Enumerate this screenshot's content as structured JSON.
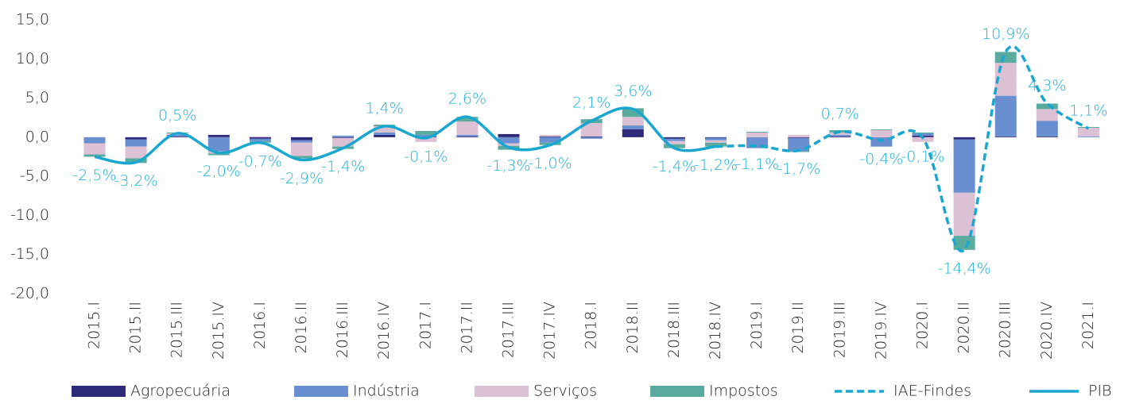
{
  "chart_data": {
    "type": "bar-line",
    "categories": [
      "2015.I",
      "2015.II",
      "2015.III",
      "2015.IV",
      "2016.I",
      "2016.II",
      "2016.III",
      "2016.IV",
      "2017.I",
      "2017.II",
      "2017.III",
      "2017.IV",
      "2018.I",
      "2018.II",
      "2018.III",
      "2018.IV",
      "2019.I",
      "2019.II",
      "2019.III",
      "2019.IV",
      "2020.I",
      "2020.II",
      "2020.III",
      "2020.IV",
      "2021.I"
    ],
    "series": [
      {
        "name": "Agropecuária",
        "kind": "bar",
        "color": "#2e2a7a",
        "values": [
          0,
          -0.3,
          0.1,
          0.3,
          -0.2,
          -0.4,
          -0.1,
          0.3,
          0.1,
          0.1,
          0.4,
          0.1,
          0.1,
          1.0,
          -0.2,
          -0.1,
          0,
          -0.1,
          0.1,
          0,
          0.2,
          -0.3,
          0.1,
          0.1,
          0
        ]
      },
      {
        "name": "Indústria",
        "kind": "bar",
        "color": "#6a8fd0",
        "values": [
          -0.8,
          -0.9,
          0.2,
          -1.8,
          -0.3,
          -0.3,
          0.2,
          0.3,
          0.2,
          0.2,
          -0.8,
          -0.7,
          -0.2,
          0.5,
          -0.3,
          -0.3,
          -1.4,
          -1.7,
          0.2,
          -1.2,
          0.3,
          -6.8,
          5.2,
          2.0,
          0.1
        ]
      },
      {
        "name": "Serviços",
        "kind": "bar",
        "color": "#dcc0d4",
        "values": [
          -1.4,
          -1.5,
          0.2,
          -0.3,
          0.1,
          -1.7,
          -1.1,
          0.8,
          -0.6,
          1.7,
          -0.3,
          0.2,
          1.7,
          1.1,
          -0.4,
          -0.3,
          0.6,
          0.3,
          0.3,
          0.9,
          -0.6,
          -5.5,
          4.2,
          1.5,
          1.1
        ]
      },
      {
        "name": "Impostos",
        "kind": "bar",
        "color": "#5aab9f",
        "values": [
          -0.3,
          -0.6,
          0.1,
          -0.2,
          -0.2,
          -0.3,
          -0.3,
          0.2,
          0.5,
          0.6,
          -0.5,
          -0.3,
          0.5,
          1.1,
          -0.5,
          -0.5,
          0.1,
          -0.1,
          0.3,
          0.1,
          0.1,
          -1.8,
          1.4,
          0.7,
          0.1
        ]
      },
      {
        "name": "IAE-Findes",
        "kind": "line",
        "dashed": true,
        "color": "#1aa7cf",
        "values": [
          null,
          null,
          null,
          null,
          null,
          null,
          null,
          null,
          null,
          null,
          null,
          null,
          null,
          null,
          null,
          -1.2,
          -1.1,
          -1.7,
          0.7,
          -0.4,
          -0.1,
          -14.4,
          10.9,
          4.3,
          1.1
        ],
        "value_labels": [
          null,
          null,
          null,
          null,
          null,
          null,
          null,
          null,
          null,
          null,
          null,
          null,
          null,
          null,
          null,
          null,
          "-1,1%",
          "-1,7%",
          "0,7%",
          "-0,4%",
          "-0,1%",
          "-14,4%",
          "10,9%",
          "4,3%",
          "1,1%"
        ]
      },
      {
        "name": "PIB",
        "kind": "line",
        "dashed": false,
        "color": "#1aa7cf",
        "values": [
          -2.5,
          -3.2,
          0.5,
          -2.0,
          -0.7,
          -2.9,
          -1.4,
          1.4,
          -0.1,
          2.6,
          -1.3,
          -1.0,
          2.1,
          3.6,
          -1.4,
          -1.2,
          null,
          null,
          null,
          null,
          null,
          null,
          null,
          null,
          null
        ],
        "value_labels": [
          "-2,5%",
          "-3,2%",
          "0,5%",
          "-2,0%",
          "-0,7%",
          "-2,9%",
          "-1,4%",
          "1,4%",
          "-0,1%",
          "2,6%",
          "-1,3%",
          "-1,0%",
          "2,1%",
          "3,6%",
          "-1,4%",
          "-1,2%",
          null,
          null,
          null,
          null,
          null,
          null,
          null,
          null,
          null
        ]
      }
    ],
    "ylim": [
      -20,
      15
    ],
    "yticks": [
      {
        "value": -20,
        "label": "-20,0"
      },
      {
        "value": -15,
        "label": "-15,0"
      },
      {
        "value": -10,
        "label": "-10,0"
      },
      {
        "value": -5,
        "label": "-5,0"
      },
      {
        "value": 0,
        "label": "0,0"
      },
      {
        "value": 5,
        "label": "5,0"
      },
      {
        "value": 10,
        "label": "10,0"
      },
      {
        "value": 15,
        "label": "15,0"
      }
    ],
    "grid": false,
    "legend": "bottom"
  }
}
